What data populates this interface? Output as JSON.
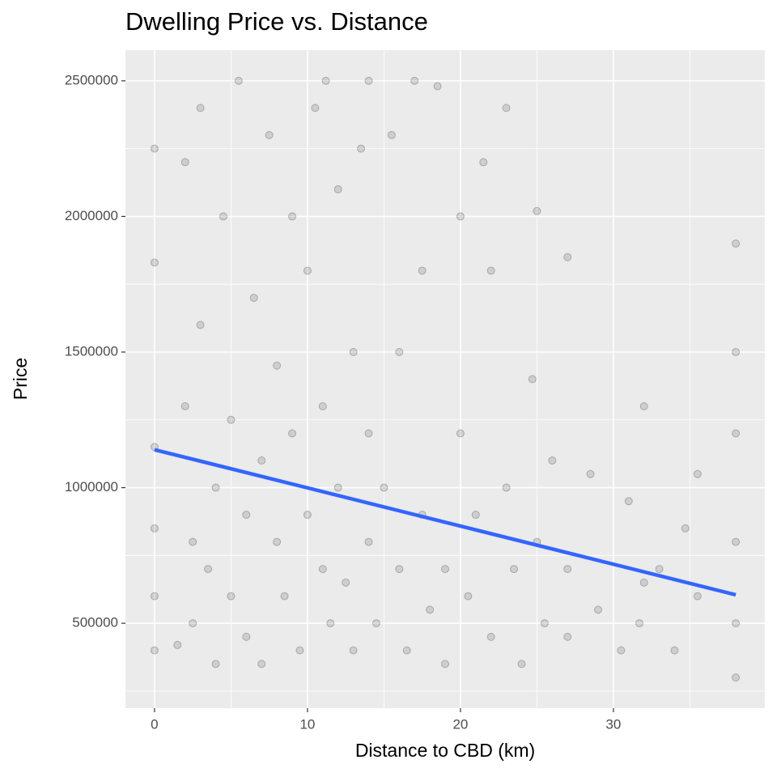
{
  "chart_data": {
    "type": "scatter",
    "title": "Dwelling Price vs. Distance",
    "x_label": "Distance to CBD (km)",
    "y_label": "Price",
    "x": [
      0,
      0,
      0,
      0,
      0,
      0,
      1.5,
      2,
      2,
      2.5,
      2.5,
      3,
      3,
      3.5,
      4,
      4,
      4.5,
      5,
      5,
      5.5,
      6,
      6,
      6.5,
      7,
      7,
      7.5,
      8,
      8,
      8.5,
      9,
      9,
      9.5,
      10,
      10,
      10.5,
      11,
      11,
      11.2,
      11.5,
      12,
      12,
      12.5,
      13,
      13,
      13.5,
      14,
      14,
      14,
      14.5,
      15,
      15.5,
      16,
      16,
      16.5,
      17,
      17.5,
      17.5,
      18,
      18.5,
      19,
      19,
      20,
      20,
      20.5,
      21,
      21.5,
      22,
      22,
      23,
      23,
      23.5,
      24,
      24.7,
      25,
      25,
      25.5,
      26,
      27,
      27,
      27,
      28.5,
      29,
      30.5,
      31,
      31.7,
      32,
      32,
      33,
      34,
      34.7,
      35.5,
      35.5,
      38,
      38,
      38,
      38,
      38,
      38
    ],
    "values": [
      1830000,
      2250000,
      600000,
      400000,
      850000,
      1150000,
      420000,
      1300000,
      2200000,
      800000,
      500000,
      1600000,
      2400000,
      700000,
      1000000,
      350000,
      2000000,
      1250000,
      600000,
      2500000,
      900000,
      450000,
      1700000,
      1100000,
      350000,
      2300000,
      800000,
      1450000,
      600000,
      2000000,
      1200000,
      400000,
      900000,
      1800000,
      2400000,
      700000,
      1300000,
      2500000,
      500000,
      1000000,
      2100000,
      650000,
      1500000,
      400000,
      2250000,
      1200000,
      800000,
      2500000,
      500000,
      1000000,
      2300000,
      700000,
      1500000,
      400000,
      2500000,
      900000,
      1800000,
      550000,
      2480000,
      700000,
      350000,
      2000000,
      1200000,
      600000,
      900000,
      2200000,
      1800000,
      450000,
      2400000,
      1000000,
      700000,
      350000,
      1400000,
      2020000,
      800000,
      500000,
      1100000,
      1850000,
      700000,
      450000,
      1050000,
      550000,
      400000,
      950000,
      500000,
      1300000,
      650000,
      700000,
      400000,
      850000,
      1050000,
      600000,
      1900000,
      1500000,
      1200000,
      800000,
      500000,
      300000
    ],
    "point_color": "#000000",
    "point_alpha": 0.12,
    "trend": {
      "x": [
        0,
        38
      ],
      "values": [
        1140000,
        605000
      ],
      "color": "#3366ff"
    },
    "xlim": [
      -1.9,
      39.9
    ],
    "ylim": [
      187000,
      2613000
    ],
    "xticks": [
      0,
      10,
      20,
      30
    ],
    "yticks": [
      500000,
      1000000,
      1500000,
      2000000,
      2500000
    ],
    "x_minor_ticks": [
      5,
      15,
      25,
      35
    ],
    "y_minor_ticks": [
      250000,
      750000,
      1250000,
      1750000,
      2250000
    ],
    "grid": true
  }
}
